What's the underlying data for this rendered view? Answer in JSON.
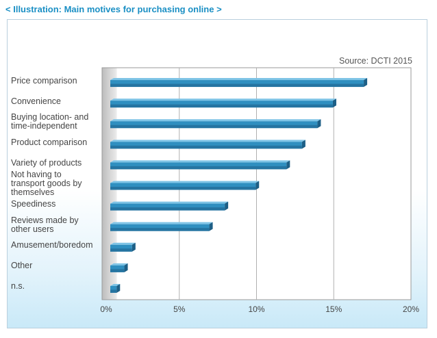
{
  "header": {
    "open_bracket": "<",
    "title": "Illustration: Main motives for purchasing online",
    "close_bracket": ">"
  },
  "colors": {
    "accent": "#1a8fc4",
    "bar_front": "#2f8fc0",
    "bar_top": "#7fc4e6",
    "bar_side": "#1d5f86"
  },
  "chart_data": {
    "type": "bar",
    "orientation": "horizontal",
    "title": "",
    "source": "Source: DCTI 2015",
    "categories": [
      "Price comparison",
      "Convenience",
      "Buying location- and time-independent",
      "Product comparison",
      "Variety of products",
      "Not having to transport goods by themselves",
      "Speediness",
      "Reviews made by other users",
      "Amusement/boredom",
      "Other",
      "n.s."
    ],
    "category_lines": [
      [
        "Price comparison"
      ],
      [
        "Convenience"
      ],
      [
        "Buying location- and",
        "time-independent"
      ],
      [
        "Product comparison"
      ],
      [
        "Variety of products"
      ],
      [
        "Not having to",
        "transport goods by",
        "themselves"
      ],
      [
        "Speediness"
      ],
      [
        "Reviews made by",
        "other users"
      ],
      [
        "Amusement/boredom"
      ],
      [
        "Other"
      ],
      [
        "n.s."
      ]
    ],
    "values": [
      16.5,
      14.5,
      13.5,
      12.5,
      11.5,
      9.5,
      7.5,
      6.5,
      1.5,
      1.0,
      0.5
    ],
    "unit": "%",
    "xlim": [
      0,
      20
    ],
    "xticks": [
      0,
      5,
      10,
      15,
      20
    ],
    "xtick_labels": [
      "0%",
      "5%",
      "10%",
      "15%",
      "20%"
    ],
    "grid": true
  }
}
